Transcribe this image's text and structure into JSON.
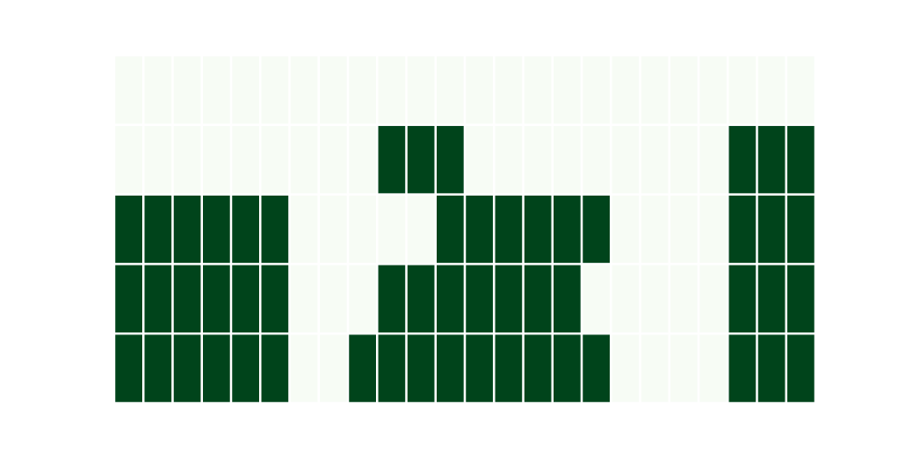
{
  "chart_data": {
    "type": "heatmap",
    "rows": 5,
    "cols": 24,
    "colors": {
      "low": "#f7fcf5",
      "high": "#00441b",
      "grid": "#ffffff"
    },
    "values": [
      [
        0,
        0,
        0,
        0,
        0,
        0,
        0,
        0,
        0,
        0,
        0,
        0,
        0,
        0,
        0,
        0,
        0,
        0,
        0,
        0,
        0,
        0,
        0,
        0
      ],
      [
        0,
        0,
        0,
        0,
        0,
        0,
        0,
        0,
        0,
        1,
        1,
        1,
        0,
        0,
        0,
        0,
        0,
        0,
        0,
        0,
        0,
        1,
        1,
        1
      ],
      [
        1,
        1,
        1,
        1,
        1,
        1,
        0,
        0,
        0,
        0,
        0,
        1,
        1,
        1,
        1,
        1,
        1,
        0,
        0,
        0,
        0,
        1,
        1,
        1
      ],
      [
        1,
        1,
        1,
        1,
        1,
        1,
        0,
        0,
        0,
        1,
        1,
        1,
        1,
        1,
        1,
        1,
        0,
        0,
        0,
        0,
        0,
        1,
        1,
        1
      ],
      [
        1,
        1,
        1,
        1,
        1,
        1,
        0,
        0,
        1,
        1,
        1,
        1,
        1,
        1,
        1,
        1,
        1,
        0,
        0,
        0,
        0,
        1,
        1,
        1
      ]
    ]
  }
}
